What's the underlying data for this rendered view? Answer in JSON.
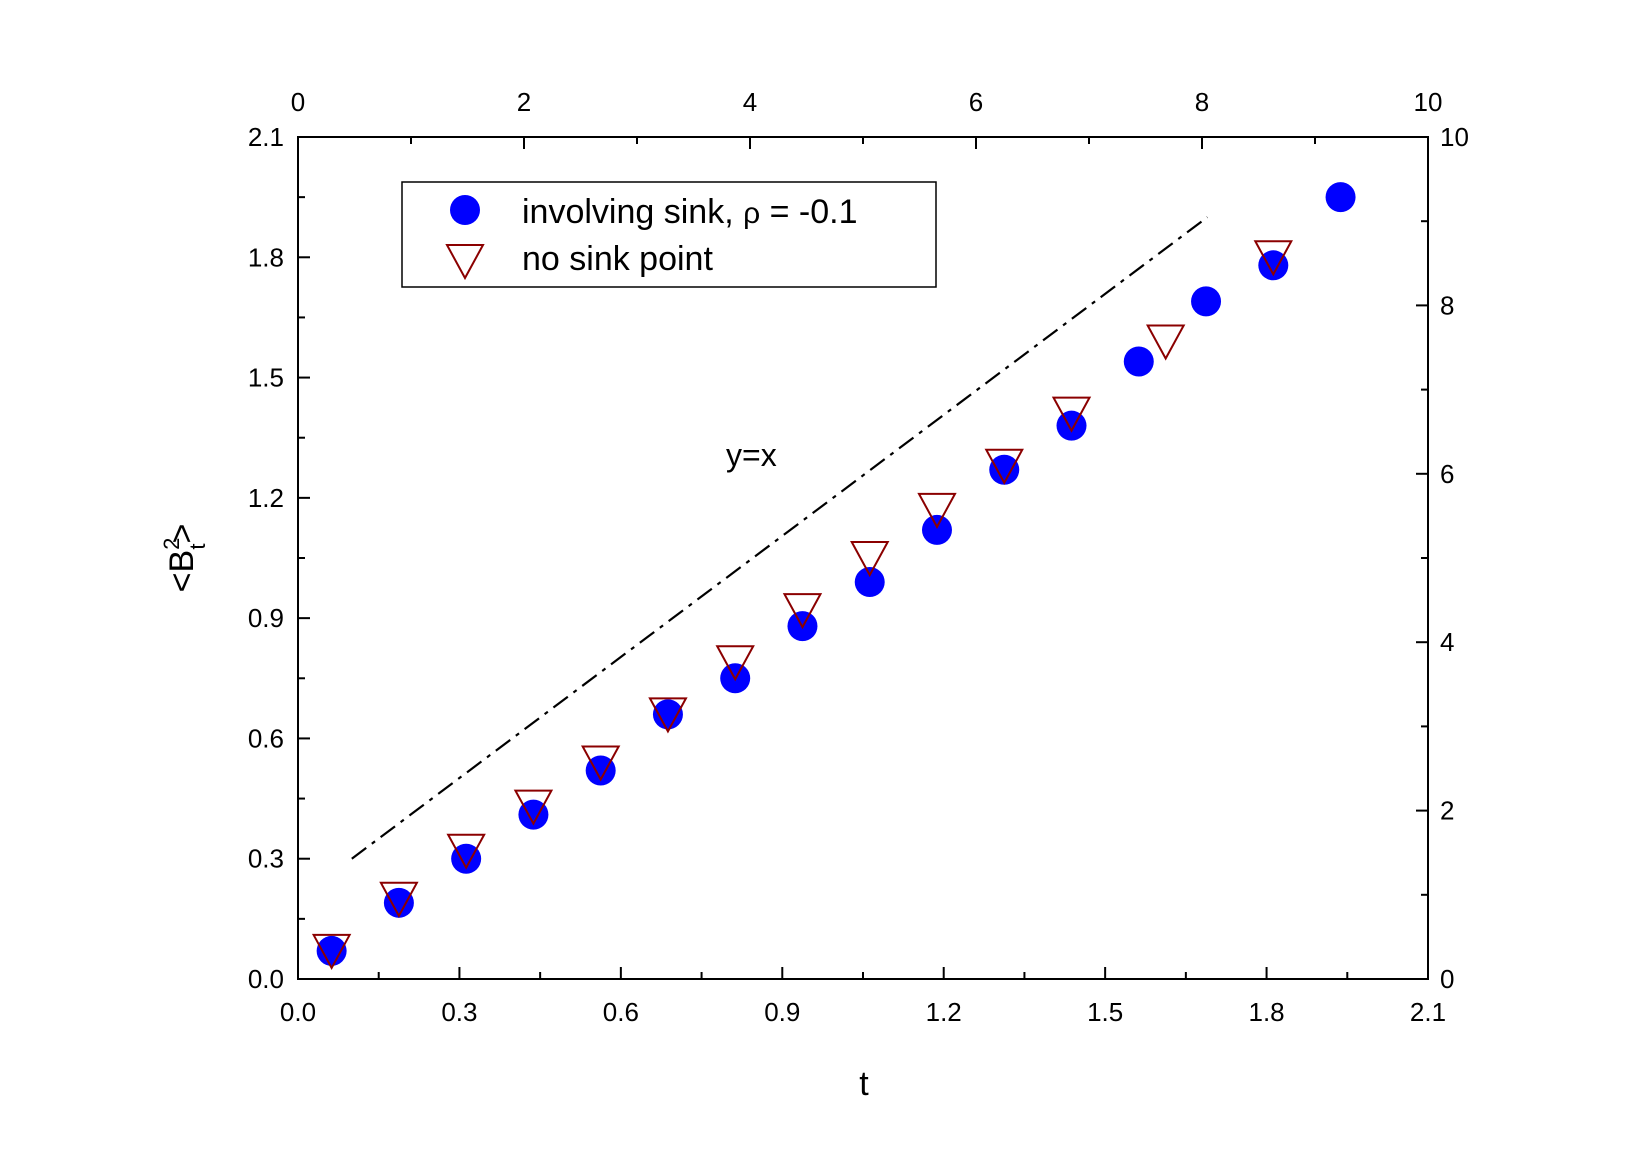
{
  "chart_data": {
    "type": "scatter",
    "xlabel": "t",
    "ylabel_main": "<B",
    "ylabel_sup": "2",
    "ylabel_sub": "t",
    "ylabel_end": ">",
    "xlim": [
      0.0,
      2.1
    ],
    "ylim": [
      0.0,
      2.1
    ],
    "x_ticks": [
      "0.0",
      "0.3",
      "0.6",
      "0.9",
      "1.2",
      "1.5",
      "1.8",
      "2.1"
    ],
    "y_ticks": [
      "0.0",
      "0.3",
      "0.6",
      "0.9",
      "1.2",
      "1.5",
      "1.8",
      "2.1"
    ],
    "top_axis": {
      "range": [
        0,
        10
      ],
      "ticks": [
        "0",
        "2",
        "4",
        "6",
        "8",
        "10"
      ]
    },
    "right_axis": {
      "range": [
        0,
        10
      ],
      "ticks": [
        "0",
        "2",
        "4",
        "6",
        "8",
        "10"
      ]
    },
    "legend": {
      "placement": "top-left",
      "involving_prefix": "involving sink, ",
      "involving_rho": "ρ",
      "involving_suffix": " = -0.1",
      "no_sink": "no sink point"
    },
    "annotation": "y=x",
    "colors": {
      "involving": "#0000ff",
      "no_sink": "#8b0000",
      "line": "#000000"
    },
    "series": [
      {
        "name": "involving sink, ρ = -0.1",
        "marker": "circle",
        "x": [
          0.0625,
          0.1875,
          0.3125,
          0.4375,
          0.5625,
          0.6875,
          0.8125,
          0.9375,
          1.0625,
          1.1875,
          1.3125,
          1.4375,
          1.5625,
          1.6875,
          1.8125,
          1.9375
        ],
        "y": [
          0.07,
          0.19,
          0.3,
          0.41,
          0.52,
          0.66,
          0.75,
          0.88,
          0.99,
          1.12,
          1.27,
          1.38,
          1.54,
          1.69,
          1.78,
          1.95
        ]
      },
      {
        "name": "no sink point",
        "marker": "triangle-down",
        "x": [
          0.0625,
          0.1875,
          0.3125,
          0.4375,
          0.5625,
          0.6875,
          0.8125,
          0.9375,
          1.0625,
          1.1875,
          1.3125,
          1.4375,
          1.6125,
          1.8125
        ],
        "y": [
          0.07,
          0.2,
          0.32,
          0.43,
          0.54,
          0.66,
          0.79,
          0.92,
          1.05,
          1.17,
          1.28,
          1.41,
          1.59,
          1.8
        ]
      },
      {
        "name": "y=x",
        "marker": "dash-dot-line",
        "x": [
          0.1,
          1.69
        ],
        "y": [
          0.3,
          1.9
        ]
      }
    ]
  }
}
